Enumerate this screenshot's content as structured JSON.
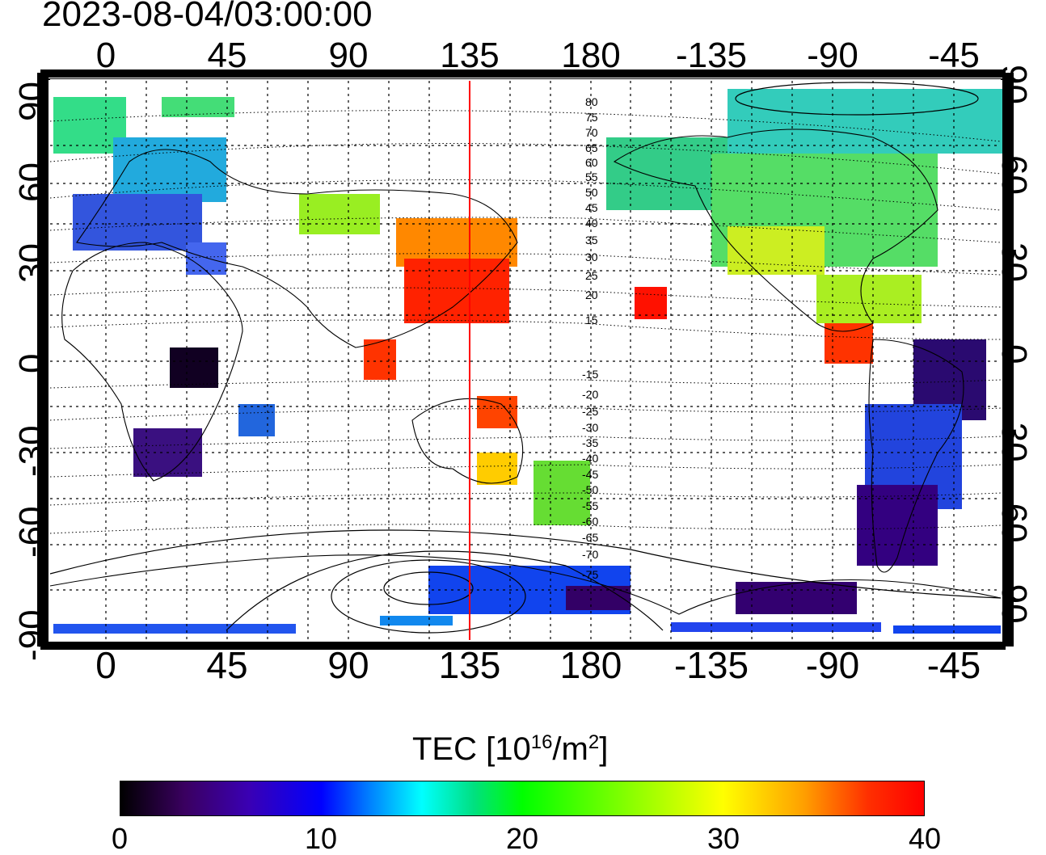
{
  "timestamp": "2023-08-04/03:00:00",
  "axes": {
    "top_lon_labels": [
      "0",
      "45",
      "90",
      "135",
      "180",
      "-135",
      "-90",
      "-45"
    ],
    "bottom_lon_labels": [
      "0",
      "45",
      "90",
      "135",
      "180",
      "-135",
      "-90",
      "-45"
    ],
    "left_lat_labels": [
      "90",
      "60",
      "30",
      "0",
      "-30",
      "-60",
      "-90"
    ],
    "right_lat_labels": [
      "90",
      "60",
      "30",
      "0",
      "-30",
      "-60",
      "-90"
    ],
    "lon_range": [
      -20,
      340
    ],
    "lat_range": [
      -92,
      92
    ]
  },
  "contour_labels": {
    "north": [
      "80",
      "75",
      "70",
      "65",
      "60",
      "55",
      "50",
      "45",
      "40",
      "35",
      "30",
      "25",
      "20",
      "15"
    ],
    "south": [
      "-15",
      "-20",
      "-25",
      "-30",
      "-35",
      "-40",
      "-45",
      "-50",
      "-55",
      "-60",
      "-65",
      "-70",
      "-75"
    ]
  },
  "meridian_marker_lon": 135,
  "colorbar": {
    "title_prefix": "TEC  [10",
    "title_exp1": "16",
    "title_mid": "/m",
    "title_exp2": "2",
    "title_suffix": "]",
    "min": 0,
    "max": 40,
    "tick_labels": [
      "0",
      "10",
      "20",
      "30",
      "40"
    ]
  },
  "colors": {
    "marker_line": "#ff0000",
    "grid": "#000000"
  }
}
